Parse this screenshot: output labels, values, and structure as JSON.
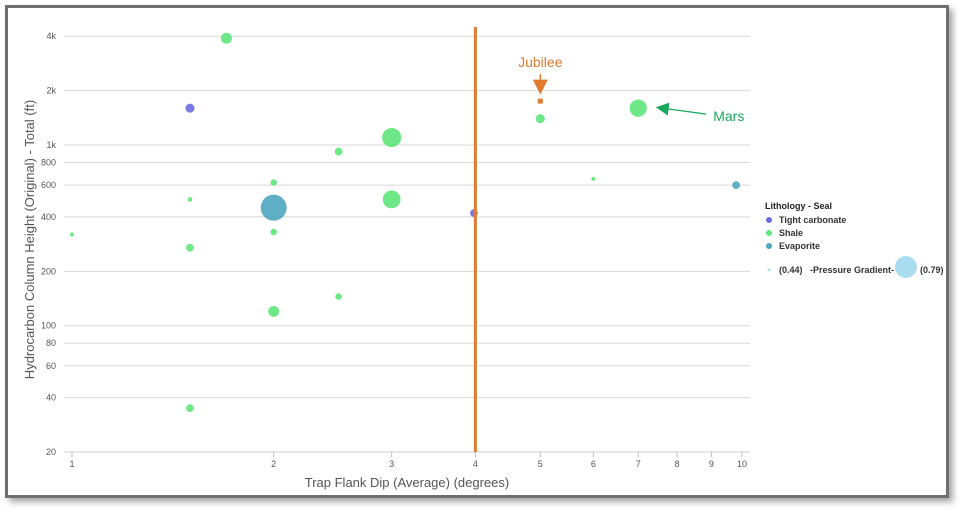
{
  "chart_data": {
    "type": "scatter",
    "xlabel": "Trap Flank Dip (Average) (degrees)",
    "ylabel": "Hydrocarbon Column Height (Original) - Total (ft)",
    "x_scale": "log",
    "y_scale": "log",
    "xlim": [
      1,
      10
    ],
    "ylim": [
      20,
      4500
    ],
    "x_ticks": [
      "1",
      "2",
      "3",
      "4",
      "5",
      "6",
      "7",
      "8",
      "9",
      "10"
    ],
    "y_ticks": [
      "20",
      "40",
      "60",
      "80",
      "100",
      "200",
      "400",
      "600",
      "800",
      "1k",
      "2k",
      "4k"
    ],
    "grid": "horizontal",
    "legend": {
      "title": "Lithology - Seal",
      "position": "right",
      "entries": [
        {
          "name": "Tight carbonate",
          "color": "#6a6de0"
        },
        {
          "name": "Shale",
          "color": "#5ee67a"
        },
        {
          "name": "Evaporite",
          "color": "#4ea6c0"
        }
      ],
      "size_legend": {
        "min_label": "(0.44)",
        "label": "-Pressure Gradient-",
        "max_label": "(0.79)",
        "color": "#a9dcef"
      }
    },
    "series": [
      {
        "name": "Tight carbonate",
        "color": "#6a6de0",
        "points": [
          {
            "x": 1.5,
            "y": 1600,
            "pressure": 0.52
          },
          {
            "x": 3.98,
            "y": 420,
            "pressure": 0.5
          }
        ]
      },
      {
        "name": "Shale",
        "color": "#5ee67a",
        "points": [
          {
            "x": 1.7,
            "y": 3900,
            "pressure": 0.55
          },
          {
            "x": 1.5,
            "y": 500,
            "pressure": 0.45
          },
          {
            "x": 1.5,
            "y": 270,
            "pressure": 0.5
          },
          {
            "x": 1.5,
            "y": 35,
            "pressure": 0.5
          },
          {
            "x": 1.0,
            "y": 320,
            "pressure": 0.44
          },
          {
            "x": 2.0,
            "y": 620,
            "pressure": 0.48
          },
          {
            "x": 2.0,
            "y": 330,
            "pressure": 0.48
          },
          {
            "x": 2.0,
            "y": 120,
            "pressure": 0.55
          },
          {
            "x": 2.5,
            "y": 920,
            "pressure": 0.5
          },
          {
            "x": 2.5,
            "y": 145,
            "pressure": 0.48
          },
          {
            "x": 3.0,
            "y": 1100,
            "pressure": 0.68
          },
          {
            "x": 3.0,
            "y": 500,
            "pressure": 0.66
          },
          {
            "x": 5.0,
            "y": 1400,
            "pressure": 0.52
          },
          {
            "x": 6.0,
            "y": 650,
            "pressure": 0.44
          },
          {
            "x": 7.0,
            "y": 1600,
            "pressure": 0.65
          }
        ]
      },
      {
        "name": "Evaporite",
        "color": "#4ea6c0",
        "points": [
          {
            "x": 2.0,
            "y": 450,
            "pressure": 0.79
          },
          {
            "x": 9.8,
            "y": 600,
            "pressure": 0.5
          }
        ]
      }
    ],
    "reference_line": {
      "x": 4,
      "color": "#e07b30"
    },
    "annotations": [
      {
        "text": "Jubilee",
        "color": "#e07b30",
        "x": 5.0,
        "y": 1750
      },
      {
        "text": "Mars",
        "color": "#1aa85b",
        "x": 7.0,
        "y": 1600
      }
    ]
  }
}
